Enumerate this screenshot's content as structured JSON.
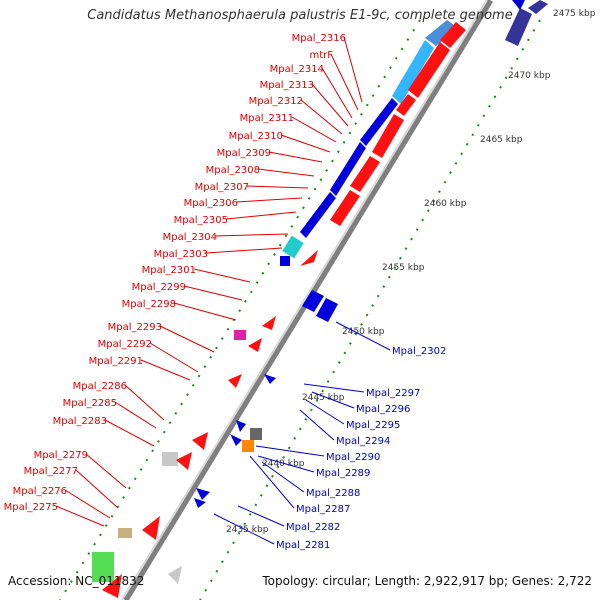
{
  "title": "Candidatus Methanosphaerula palustris E1-9c, complete genome",
  "footer": {
    "accession": "Accession: NC_011832",
    "summary": "Topology: circular; Length: 2,922,917 bp; Genes: 2,722"
  },
  "colors": {
    "left_label": "#e00000",
    "right_label": "#0000cc",
    "backbone": "#9a9a9a",
    "tick": "#1a8a1a"
  },
  "kbp_ticks": [
    {
      "label": "2475 kbp",
      "pos": 0.0
    },
    {
      "label": "2470 kbp",
      "pos": 0.1
    },
    {
      "label": "2465 kbp",
      "pos": 0.2
    },
    {
      "label": "2460 kbp",
      "pos": 0.3
    },
    {
      "label": "2455 kbp",
      "pos": 0.4
    },
    {
      "label": "2450 kbp",
      "pos": 0.5
    },
    {
      "label": "2445 kbp",
      "pos": 0.6
    },
    {
      "label": "2440 kbp",
      "pos": 0.7
    },
    {
      "label": "2435 kbp",
      "pos": 0.8
    }
  ],
  "left_labels": [
    "Mpal_2316",
    "mtrF",
    "Mpal_2314",
    "Mpal_2313",
    "Mpal_2312",
    "Mpal_2311",
    "Mpal_2310",
    "Mpal_2309",
    "Mpal_2308",
    "Mpal_2307",
    "Mpal_2306",
    "Mpal_2305",
    "Mpal_2304",
    "Mpal_2303",
    "Mpal_2301",
    "Mpal_2299",
    "Mpal_2298",
    "Mpal_2293",
    "Mpal_2292",
    "Mpal_2291",
    "Mpal_2286",
    "Mpal_2285",
    "Mpal_2283",
    "Mpal_2279",
    "Mpal_2277",
    "Mpal_2276",
    "Mpal_2275"
  ],
  "right_labels": [
    "Mpal_2302",
    "Mpal_2297",
    "Mpal_2296",
    "Mpal_2295",
    "Mpal_2294",
    "Mpal_2290",
    "Mpal_2289",
    "Mpal_2288",
    "Mpal_2287",
    "Mpal_2282",
    "Mpal_2281"
  ]
}
